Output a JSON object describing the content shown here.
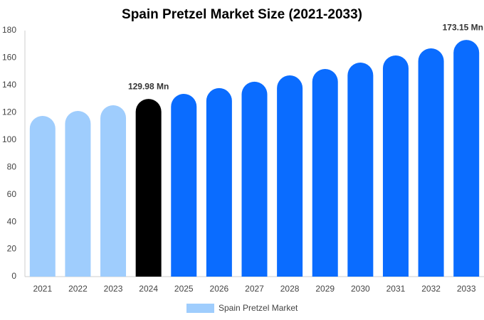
{
  "chart_data": {
    "type": "bar",
    "title": "Spain Pretzel Market Size (2021-2033)",
    "categories": [
      "2021",
      "2022",
      "2023",
      "2024",
      "2025",
      "2026",
      "2027",
      "2028",
      "2029",
      "2030",
      "2031",
      "2032",
      "2033"
    ],
    "series": [
      {
        "name": "Spain Pretzel Market",
        "color": "#9fcdfd",
        "values": [
          117.6,
          121.2,
          125.4,
          129.98,
          133.7,
          137.9,
          142.6,
          147.2,
          151.9,
          156.6,
          161.8,
          167.0,
          173.15
        ],
        "value_labels": [
          null,
          null,
          null,
          "129.98 Mn",
          null,
          null,
          null,
          null,
          null,
          null,
          null,
          null,
          "173.15 Mn"
        ],
        "colors": [
          "#9fcdfd",
          "#9fcdfd",
          "#9fcdfd",
          "#000000",
          "#0a6cff",
          "#0a6cff",
          "#0a6cff",
          "#0a6cff",
          "#0a6cff",
          "#0a6cff",
          "#0a6cff",
          "#0a6cff",
          "#0a6cff"
        ]
      }
    ],
    "ylim": [
      0,
      180
    ],
    "yticks": [
      0,
      20,
      40,
      60,
      80,
      100,
      120,
      140,
      160,
      180
    ],
    "grid": false,
    "legend": "bottom"
  }
}
